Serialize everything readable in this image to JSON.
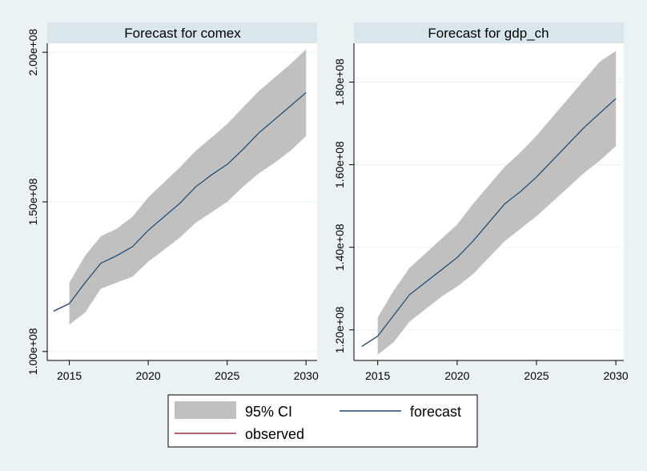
{
  "chart_data": [
    {
      "type": "area",
      "title": "Forecast for comex",
      "x": [
        2014,
        2015,
        2016,
        2017,
        2018,
        2019,
        2020,
        2021,
        2022,
        2023,
        2024,
        2025,
        2026,
        2027,
        2028,
        2029,
        2030
      ],
      "xticks": [
        2015,
        2020,
        2025,
        2030
      ],
      "xlim": [
        2013.6,
        2030.7
      ],
      "yticks": [
        100000000,
        150000000,
        200000000
      ],
      "ytick_labels": [
        "1.00e+08",
        "1.50e+08",
        "2.00e+08"
      ],
      "ylim": [
        97000000,
        203000000
      ],
      "series": [
        {
          "name": "95% CI",
          "type": "band",
          "x": [
            2015,
            2016,
            2017,
            2018,
            2019,
            2020,
            2021,
            2022,
            2023,
            2024,
            2025,
            2026,
            2027,
            2028,
            2029,
            2030
          ],
          "lower": [
            109000000,
            113000000,
            121000000,
            123000000,
            125000000,
            130000000,
            134000000,
            138000000,
            143000000,
            146500000,
            150000000,
            155000000,
            159500000,
            163000000,
            167000000,
            172000000
          ],
          "upper": [
            123000000,
            132000000,
            138500000,
            141000000,
            145000000,
            151500000,
            156500000,
            161500000,
            167000000,
            171500000,
            176000000,
            181500000,
            187000000,
            191500000,
            196000000,
            201000000
          ]
        },
        {
          "name": "observed",
          "type": "line",
          "x": [
            2014,
            2015
          ],
          "values": [
            113500000,
            116000000
          ]
        },
        {
          "name": "forecast",
          "type": "line",
          "x": [
            2014,
            2015,
            2016,
            2017,
            2018,
            2019,
            2020,
            2021,
            2022,
            2023,
            2024,
            2025,
            2026,
            2027,
            2028,
            2029,
            2030
          ],
          "values": [
            113500000,
            116000000,
            123000000,
            129500000,
            132000000,
            135000000,
            140500000,
            145000000,
            149500000,
            155000000,
            159000000,
            162500000,
            167500000,
            173000000,
            177500000,
            182000000,
            186500000
          ]
        }
      ]
    },
    {
      "type": "area",
      "title": "Forecast for gdp_ch",
      "x": [
        2014,
        2015,
        2016,
        2017,
        2018,
        2019,
        2020,
        2021,
        2022,
        2023,
        2024,
        2025,
        2026,
        2027,
        2028,
        2029,
        2030
      ],
      "xticks": [
        2015,
        2020,
        2025,
        2030
      ],
      "xlim": [
        2013.5,
        2030.5
      ],
      "yticks": [
        120000000,
        140000000,
        160000000,
        180000000
      ],
      "ytick_labels": [
        "1.20e+08",
        "1.40e+08",
        "1.60e+08",
        "1.80e+08"
      ],
      "ylim": [
        112600000,
        189400000
      ],
      "series": [
        {
          "name": "95% CI",
          "type": "band",
          "x": [
            2015,
            2016,
            2017,
            2018,
            2019,
            2020,
            2021,
            2022,
            2023,
            2024,
            2025,
            2026,
            2027,
            2028,
            2029,
            2030
          ],
          "lower": [
            114000000,
            117000000,
            122000000,
            125000000,
            128000000,
            130500000,
            133500000,
            137500000,
            141500000,
            144500000,
            147500000,
            151000000,
            154500000,
            158000000,
            161000000,
            164500000
          ],
          "upper": [
            123000000,
            129500000,
            135000000,
            138500000,
            142000000,
            145500000,
            150500000,
            155000000,
            159500000,
            163000000,
            167000000,
            171500000,
            176000000,
            180500000,
            185000000,
            187500000
          ]
        },
        {
          "name": "observed",
          "type": "line",
          "x": [
            2014,
            2015
          ],
          "values": [
            116000000,
            118500000
          ]
        },
        {
          "name": "forecast",
          "type": "line",
          "x": [
            2014,
            2015,
            2016,
            2017,
            2018,
            2019,
            2020,
            2021,
            2022,
            2023,
            2024,
            2025,
            2026,
            2027,
            2028,
            2029,
            2030
          ],
          "values": [
            116000000,
            118500000,
            123500000,
            128500000,
            131500000,
            134500000,
            137500000,
            141500000,
            146000000,
            150500000,
            153500000,
            157000000,
            161000000,
            165000000,
            169000000,
            172500000,
            176000000
          ]
        }
      ]
    }
  ],
  "legend": {
    "placement": "bottom",
    "items": [
      {
        "label": "95% CI",
        "kind": "band",
        "color": "#c0c0c0"
      },
      {
        "label": "forecast",
        "kind": "line",
        "color": "#1a476f"
      },
      {
        "label": "observed",
        "kind": "line",
        "color": "#90353b"
      }
    ]
  },
  "colors": {
    "band": "#c0c0c0",
    "forecast": "#1a476f",
    "observed": "#90353b",
    "background": "#eaf2f3",
    "title_strip": "#d9e6eb",
    "plot": "#ffffff"
  }
}
